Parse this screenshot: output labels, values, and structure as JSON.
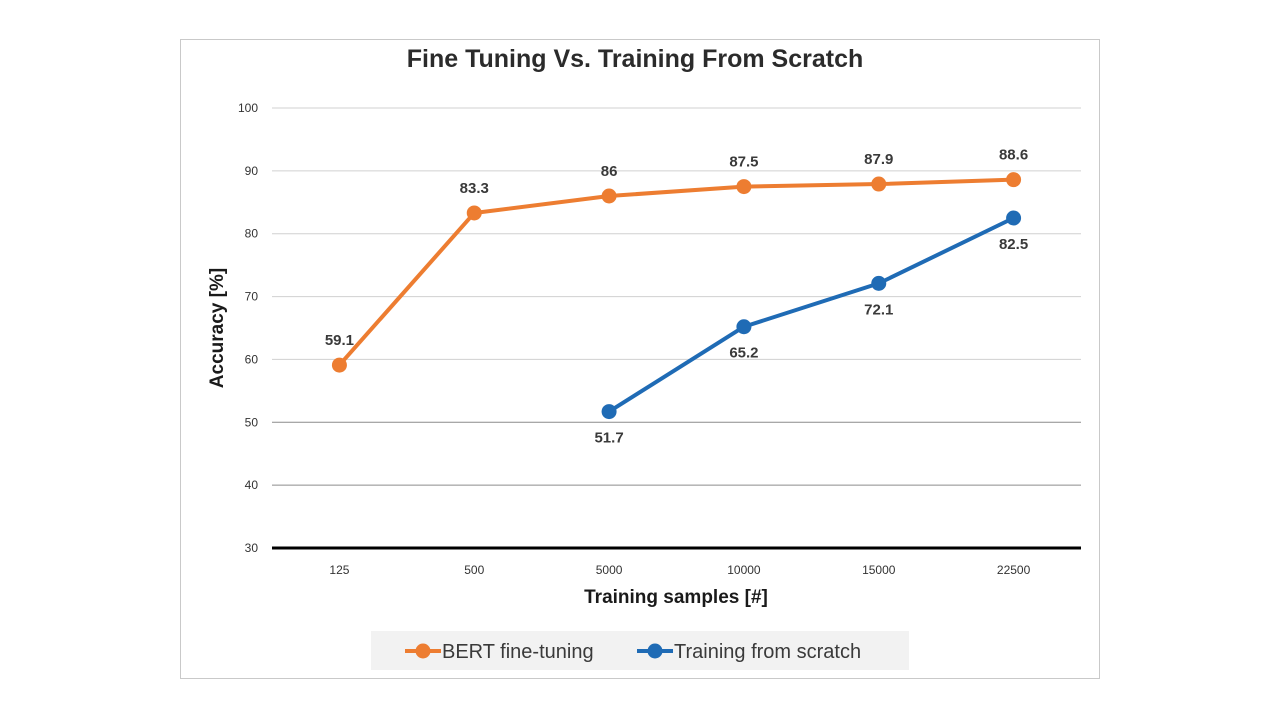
{
  "chart_data": {
    "type": "line",
    "title": "Fine Tuning Vs. Training From Scratch",
    "xlabel": "Training samples [#]",
    "ylabel": "Accuracy [%]",
    "categories": [
      "125",
      "500",
      "5000",
      "10000",
      "15000",
      "22500"
    ],
    "ylim": [
      30,
      100
    ],
    "yticks": [
      30,
      40,
      50,
      60,
      70,
      80,
      90,
      100
    ],
    "grid": true,
    "legend_position": "bottom",
    "series": [
      {
        "name": "BERT fine-tuning",
        "color": "#ED7D31",
        "values": [
          59.1,
          83.3,
          86,
          87.5,
          87.9,
          88.6
        ],
        "labels": [
          "59.1",
          "83.3",
          "86",
          "87.5",
          "87.9",
          "88.6"
        ],
        "label_position": "above"
      },
      {
        "name": "Training from scratch",
        "color": "#1F6BB5",
        "values": [
          null,
          null,
          51.7,
          65.2,
          72.1,
          82.5
        ],
        "labels": [
          "",
          "",
          "51.7",
          "65.2",
          "72.1",
          "82.5"
        ],
        "label_position": "below"
      }
    ]
  }
}
